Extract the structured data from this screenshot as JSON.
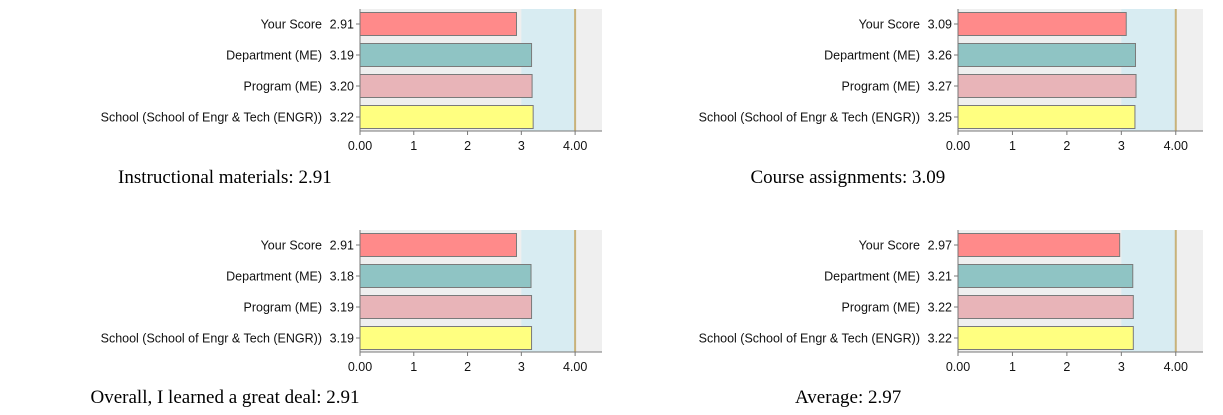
{
  "chart_data": [
    {
      "type": "bar",
      "orientation": "horizontal",
      "title": "Instructional materials: 2.91",
      "categories": [
        "Your Score",
        "Department (ME)",
        "Program (ME)",
        "School (School of Engr & Tech (ENGR))"
      ],
      "values": [
        2.91,
        3.19,
        3.2,
        3.22
      ],
      "value_labels": [
        "2.91",
        "3.19",
        "3.20",
        "3.22"
      ],
      "xlim": [
        0,
        4.5
      ],
      "xticks": [
        0,
        1,
        2,
        3,
        4
      ],
      "xtick_labels": [
        "0.00",
        "1",
        "2",
        "3",
        "4.00"
      ],
      "reference_line": 4,
      "shaded_band": [
        3,
        4
      ],
      "grid": false
    },
    {
      "type": "bar",
      "orientation": "horizontal",
      "title": "Course assignments: 3.09",
      "categories": [
        "Your Score",
        "Department (ME)",
        "Program (ME)",
        "School (School of Engr & Tech (ENGR))"
      ],
      "values": [
        3.09,
        3.26,
        3.27,
        3.25
      ],
      "value_labels": [
        "3.09",
        "3.26",
        "3.27",
        "3.25"
      ],
      "xlim": [
        0,
        4.5
      ],
      "xticks": [
        0,
        1,
        2,
        3,
        4
      ],
      "xtick_labels": [
        "0.00",
        "1",
        "2",
        "3",
        "4.00"
      ],
      "reference_line": 4,
      "shaded_band": [
        3,
        4
      ],
      "grid": false
    },
    {
      "type": "bar",
      "orientation": "horizontal",
      "title": "Overall, I learned a great deal: 2.91",
      "categories": [
        "Your Score",
        "Department (ME)",
        "Program (ME)",
        "School (School of Engr & Tech (ENGR))"
      ],
      "values": [
        2.91,
        3.18,
        3.19,
        3.19
      ],
      "value_labels": [
        "2.91",
        "3.18",
        "3.19",
        "3.19"
      ],
      "xlim": [
        0,
        4.5
      ],
      "xticks": [
        0,
        1,
        2,
        3,
        4
      ],
      "xtick_labels": [
        "0.00",
        "1",
        "2",
        "3",
        "4.00"
      ],
      "reference_line": 4,
      "shaded_band": [
        3,
        4
      ],
      "grid": false
    },
    {
      "type": "bar",
      "orientation": "horizontal",
      "title": "Average: 2.97",
      "categories": [
        "Your Score",
        "Department (ME)",
        "Program (ME)",
        "School (School of Engr & Tech (ENGR))"
      ],
      "values": [
        2.97,
        3.21,
        3.22,
        3.22
      ],
      "value_labels": [
        "2.97",
        "3.21",
        "3.22",
        "3.22"
      ],
      "xlim": [
        0,
        4.5
      ],
      "xticks": [
        0,
        1,
        2,
        3,
        4
      ],
      "xtick_labels": [
        "0.00",
        "1",
        "2",
        "3",
        "4.00"
      ],
      "reference_line": 4,
      "shaded_band": [
        3,
        4
      ],
      "grid": false
    }
  ],
  "colors": {
    "bars": [
      "#ff8a8a",
      "#8fc4c4",
      "#e8b4b8",
      "#ffff80"
    ],
    "bar_stroke": "#7a7a7a",
    "plot_background": "#efefef",
    "shaded_band": "#d8ecf2",
    "reference_line": "#c8b27a",
    "axis": "#777777"
  }
}
